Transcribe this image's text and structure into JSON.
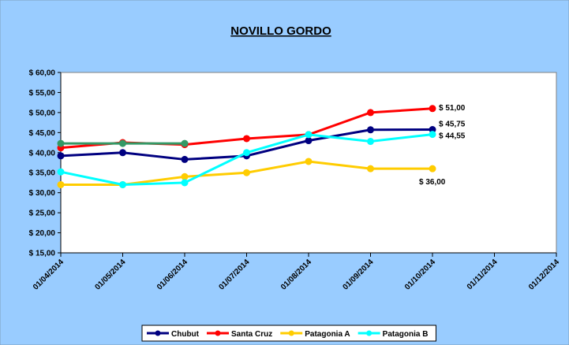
{
  "chart_data": {
    "type": "line",
    "title": "NOVILLO GORDO",
    "categories": [
      "01/04/2014",
      "01/05/2014",
      "01/06/2014",
      "01/07/2014",
      "01/08/2014",
      "01/09/2014",
      "01/10/2014",
      "01/11/2014",
      "01/12/2014"
    ],
    "series": [
      {
        "name": "Chubut",
        "color": "#000080",
        "values": [
          39.2,
          40,
          38.3,
          39.2,
          43,
          45.7,
          45.75,
          null,
          null
        ],
        "value_labels": [
          null,
          null,
          null,
          null,
          null,
          null,
          "$ 45,75",
          null,
          null
        ]
      },
      {
        "name": "Santa Cruz",
        "color": "#ff0000",
        "values": [
          41.2,
          42.5,
          42,
          43.5,
          44.5,
          50,
          51,
          null,
          null
        ],
        "value_labels": [
          null,
          null,
          null,
          null,
          null,
          null,
          "$ 51,00",
          null,
          null
        ]
      },
      {
        "name": "Patagonia A",
        "color": "#ffcc00",
        "values": [
          32,
          32,
          34,
          35,
          37.8,
          36,
          36,
          null,
          null
        ],
        "value_labels": [
          null,
          null,
          null,
          null,
          null,
          null,
          "$ 36,00",
          null,
          null
        ]
      },
      {
        "name": "Patagonia B",
        "color": "#00ffff",
        "values": [
          35.2,
          32,
          32.5,
          40,
          44.5,
          42.8,
          44.55,
          null,
          null
        ],
        "value_labels": [
          null,
          null,
          null,
          null,
          null,
          null,
          "$ 44,55",
          null,
          null
        ]
      },
      {
        "color": "#339966",
        "values": [
          42.3,
          42.3,
          42.3,
          null,
          null,
          null,
          null,
          null,
          null
        ]
      }
    ],
    "ylim": [
      15,
      60
    ],
    "yticks": [
      {
        "value": 15,
        "label": "$ 15,00"
      },
      {
        "value": 20,
        "label": "$ 20,00"
      },
      {
        "value": 25,
        "label": "$ 25,00"
      },
      {
        "value": 30,
        "label": "$ 30,00"
      },
      {
        "value": 35,
        "label": "$ 35,00"
      },
      {
        "value": 40,
        "label": "$ 40,00"
      },
      {
        "value": 45,
        "label": "$ 45,00"
      },
      {
        "value": 50,
        "label": "$ 50,00"
      },
      {
        "value": 55,
        "label": "$ 55,00"
      },
      {
        "value": 60,
        "label": "$ 60,00"
      }
    ],
    "legend": "bottom"
  }
}
